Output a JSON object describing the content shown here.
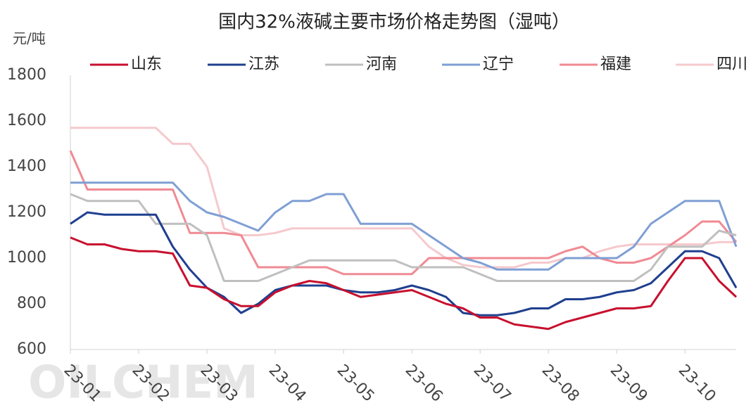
{
  "chart_data": {
    "type": "line",
    "title": "国内32%液碱主要市场价格走势图（湿吨）",
    "y_label": "元/吨",
    "watermark": "OILCHEM",
    "legend": "top",
    "categories": [
      "23-01",
      null,
      null,
      null,
      "23-02",
      null,
      null,
      null,
      "23-03",
      null,
      null,
      null,
      "23-04",
      null,
      null,
      null,
      "23-05",
      null,
      null,
      null,
      "23-06",
      null,
      null,
      null,
      "23-07",
      null,
      null,
      null,
      "23-08",
      null,
      null,
      null,
      "23-09",
      null,
      null,
      null,
      "23-10",
      null,
      null,
      null
    ],
    "ylim": [
      600,
      1800
    ],
    "yticks": [
      600,
      800,
      1000,
      1200,
      1400,
      1600,
      1800
    ],
    "series": [
      {
        "name": "山东",
        "color": "#c8102e",
        "values": [
          1090,
          1060,
          1060,
          1040,
          1030,
          1030,
          1020,
          880,
          870,
          820,
          790,
          790,
          850,
          880,
          900,
          890,
          860,
          830,
          840,
          850,
          860,
          830,
          800,
          780,
          740,
          740,
          710,
          700,
          690,
          720,
          740,
          760,
          780,
          780,
          790,
          900,
          1000,
          1000,
          900,
          830
        ]
      },
      {
        "name": "江苏",
        "color": "#1f3f8f",
        "values": [
          1150,
          1200,
          1190,
          1190,
          1190,
          1190,
          1050,
          950,
          870,
          830,
          760,
          800,
          860,
          880,
          880,
          880,
          860,
          850,
          850,
          860,
          880,
          860,
          830,
          760,
          750,
          750,
          760,
          780,
          780,
          820,
          820,
          830,
          850,
          860,
          890,
          960,
          1030,
          1030,
          1000,
          870
        ]
      },
      {
        "name": "河南",
        "color": "#bfbfbf",
        "values": [
          1280,
          1250,
          1250,
          1250,
          1250,
          1150,
          1150,
          1150,
          1100,
          900,
          900,
          900,
          930,
          960,
          990,
          990,
          990,
          990,
          990,
          990,
          960,
          960,
          960,
          960,
          930,
          900,
          900,
          900,
          900,
          900,
          900,
          900,
          900,
          900,
          950,
          1050,
          1050,
          1050,
          1120,
          1100
        ]
      },
      {
        "name": "辽宁",
        "color": "#7f9fd4",
        "values": [
          1330,
          1330,
          1330,
          1330,
          1330,
          1330,
          1330,
          1250,
          1200,
          1180,
          1150,
          1120,
          1200,
          1250,
          1250,
          1280,
          1280,
          1150,
          1150,
          1150,
          1150,
          1100,
          1050,
          1000,
          980,
          950,
          950,
          950,
          950,
          1000,
          1000,
          1000,
          1000,
          1050,
          1150,
          1200,
          1250,
          1250,
          1250,
          1050
        ]
      },
      {
        "name": "福建",
        "color": "#f08a93",
        "values": [
          1470,
          1300,
          1300,
          1300,
          1300,
          1300,
          1300,
          1110,
          1110,
          1110,
          1100,
          960,
          960,
          960,
          960,
          960,
          930,
          930,
          930,
          930,
          930,
          1000,
          1000,
          1000,
          1000,
          1000,
          1000,
          1000,
          1000,
          1030,
          1050,
          1000,
          980,
          980,
          1000,
          1050,
          1100,
          1160,
          1160,
          1070
        ]
      },
      {
        "name": "四川",
        "color": "#f5c9cd",
        "values": [
          1570,
          1570,
          1570,
          1570,
          1570,
          1570,
          1500,
          1500,
          1400,
          1130,
          1100,
          1100,
          1110,
          1130,
          1130,
          1130,
          1130,
          1130,
          1130,
          1130,
          1130,
          1050,
          1000,
          970,
          960,
          960,
          960,
          980,
          980,
          1000,
          1000,
          1030,
          1050,
          1060,
          1060,
          1060,
          1060,
          1060,
          1070,
          1070
        ]
      }
    ]
  }
}
